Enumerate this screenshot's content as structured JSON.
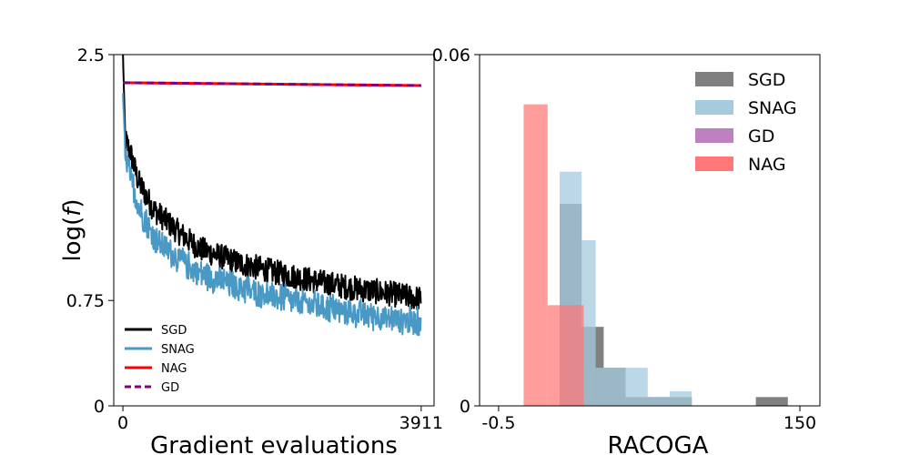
{
  "chart_data": [
    {
      "type": "line",
      "xlabel": "Gradient evaluations",
      "ylabel": "log(f)",
      "xlim": [
        -120,
        4080
      ],
      "ylim": [
        0,
        2.5
      ],
      "xticks": [
        0,
        3911
      ],
      "yticks": [
        0,
        0.75,
        2.5
      ],
      "ytick_labels": [
        "0",
        "0.75",
        "2.5"
      ],
      "grid": false,
      "legend_position": "lower-left",
      "series": [
        {
          "name": "SGD",
          "color": "#000000",
          "style": "solid",
          "noisy": true,
          "x": [
            0,
            30,
            100,
            200,
            400,
            700,
            1000,
            1500,
            2000,
            2500,
            3000,
            3500,
            3911
          ],
          "y": [
            2.52,
            1.9,
            1.8,
            1.6,
            1.4,
            1.25,
            1.12,
            1.02,
            0.95,
            0.89,
            0.84,
            0.8,
            0.76
          ]
        },
        {
          "name": "SNAG",
          "color": "#4a98c4",
          "style": "solid",
          "noisy": true,
          "x": [
            0,
            30,
            100,
            200,
            400,
            700,
            1000,
            1500,
            2000,
            2500,
            3000,
            3500,
            3911
          ],
          "y": [
            2.25,
            1.8,
            1.65,
            1.45,
            1.22,
            1.08,
            0.97,
            0.87,
            0.8,
            0.74,
            0.69,
            0.65,
            0.62
          ]
        },
        {
          "name": "NAG",
          "color": "#ff0000",
          "style": "solid",
          "x": [
            0,
            3911
          ],
          "y": [
            2.3,
            2.28
          ]
        },
        {
          "name": "GD",
          "color": "#800080",
          "style": "dashed",
          "x": [
            0,
            3911
          ],
          "y": [
            2.3,
            2.28
          ]
        }
      ]
    },
    {
      "type": "histogram",
      "xlabel": "RACOGA",
      "xlim": [
        -10,
        160
      ],
      "ylim": [
        0,
        0.06
      ],
      "xticks": [
        -0.5,
        150
      ],
      "xtick_labels": [
        "-0.5",
        "150"
      ],
      "yticks": [
        0,
        0.06
      ],
      "ytick_labels": [
        "0",
        "0.06"
      ],
      "grid": false,
      "legend_position": "top-right",
      "series": [
        {
          "name": "SGD",
          "color": "#808080",
          "bins": [
            [
              30,
              41,
              0.0345
            ],
            [
              41,
              52,
              0.0135
            ],
            [
              52,
              63,
              0.0065
            ],
            [
              63,
              74,
              0.0015
            ],
            [
              74,
              85,
              0.0015
            ],
            [
              85,
              96,
              0.0015
            ],
            [
              128,
              144,
              0.0015
            ]
          ]
        },
        {
          "name": "SNAG",
          "color": "#a6cbdd",
          "bins": [
            [
              30,
              41,
              0.04
            ],
            [
              41,
              48,
              0.0283
            ],
            [
              48,
              63,
              0.0065
            ],
            [
              63,
              74,
              0.0065
            ],
            [
              74,
              85,
              0.0015
            ],
            [
              85,
              96,
              0.0025
            ]
          ]
        },
        {
          "name": "GD",
          "color": "#bf80bf",
          "bins": []
        },
        {
          "name": "NAG",
          "color": "#ff7777",
          "bins": [
            [
              12,
              24,
              0.0515
            ],
            [
              24,
              41,
              0.0172
            ],
            [
              41,
              42,
              0.0172
            ]
          ]
        }
      ]
    }
  ]
}
